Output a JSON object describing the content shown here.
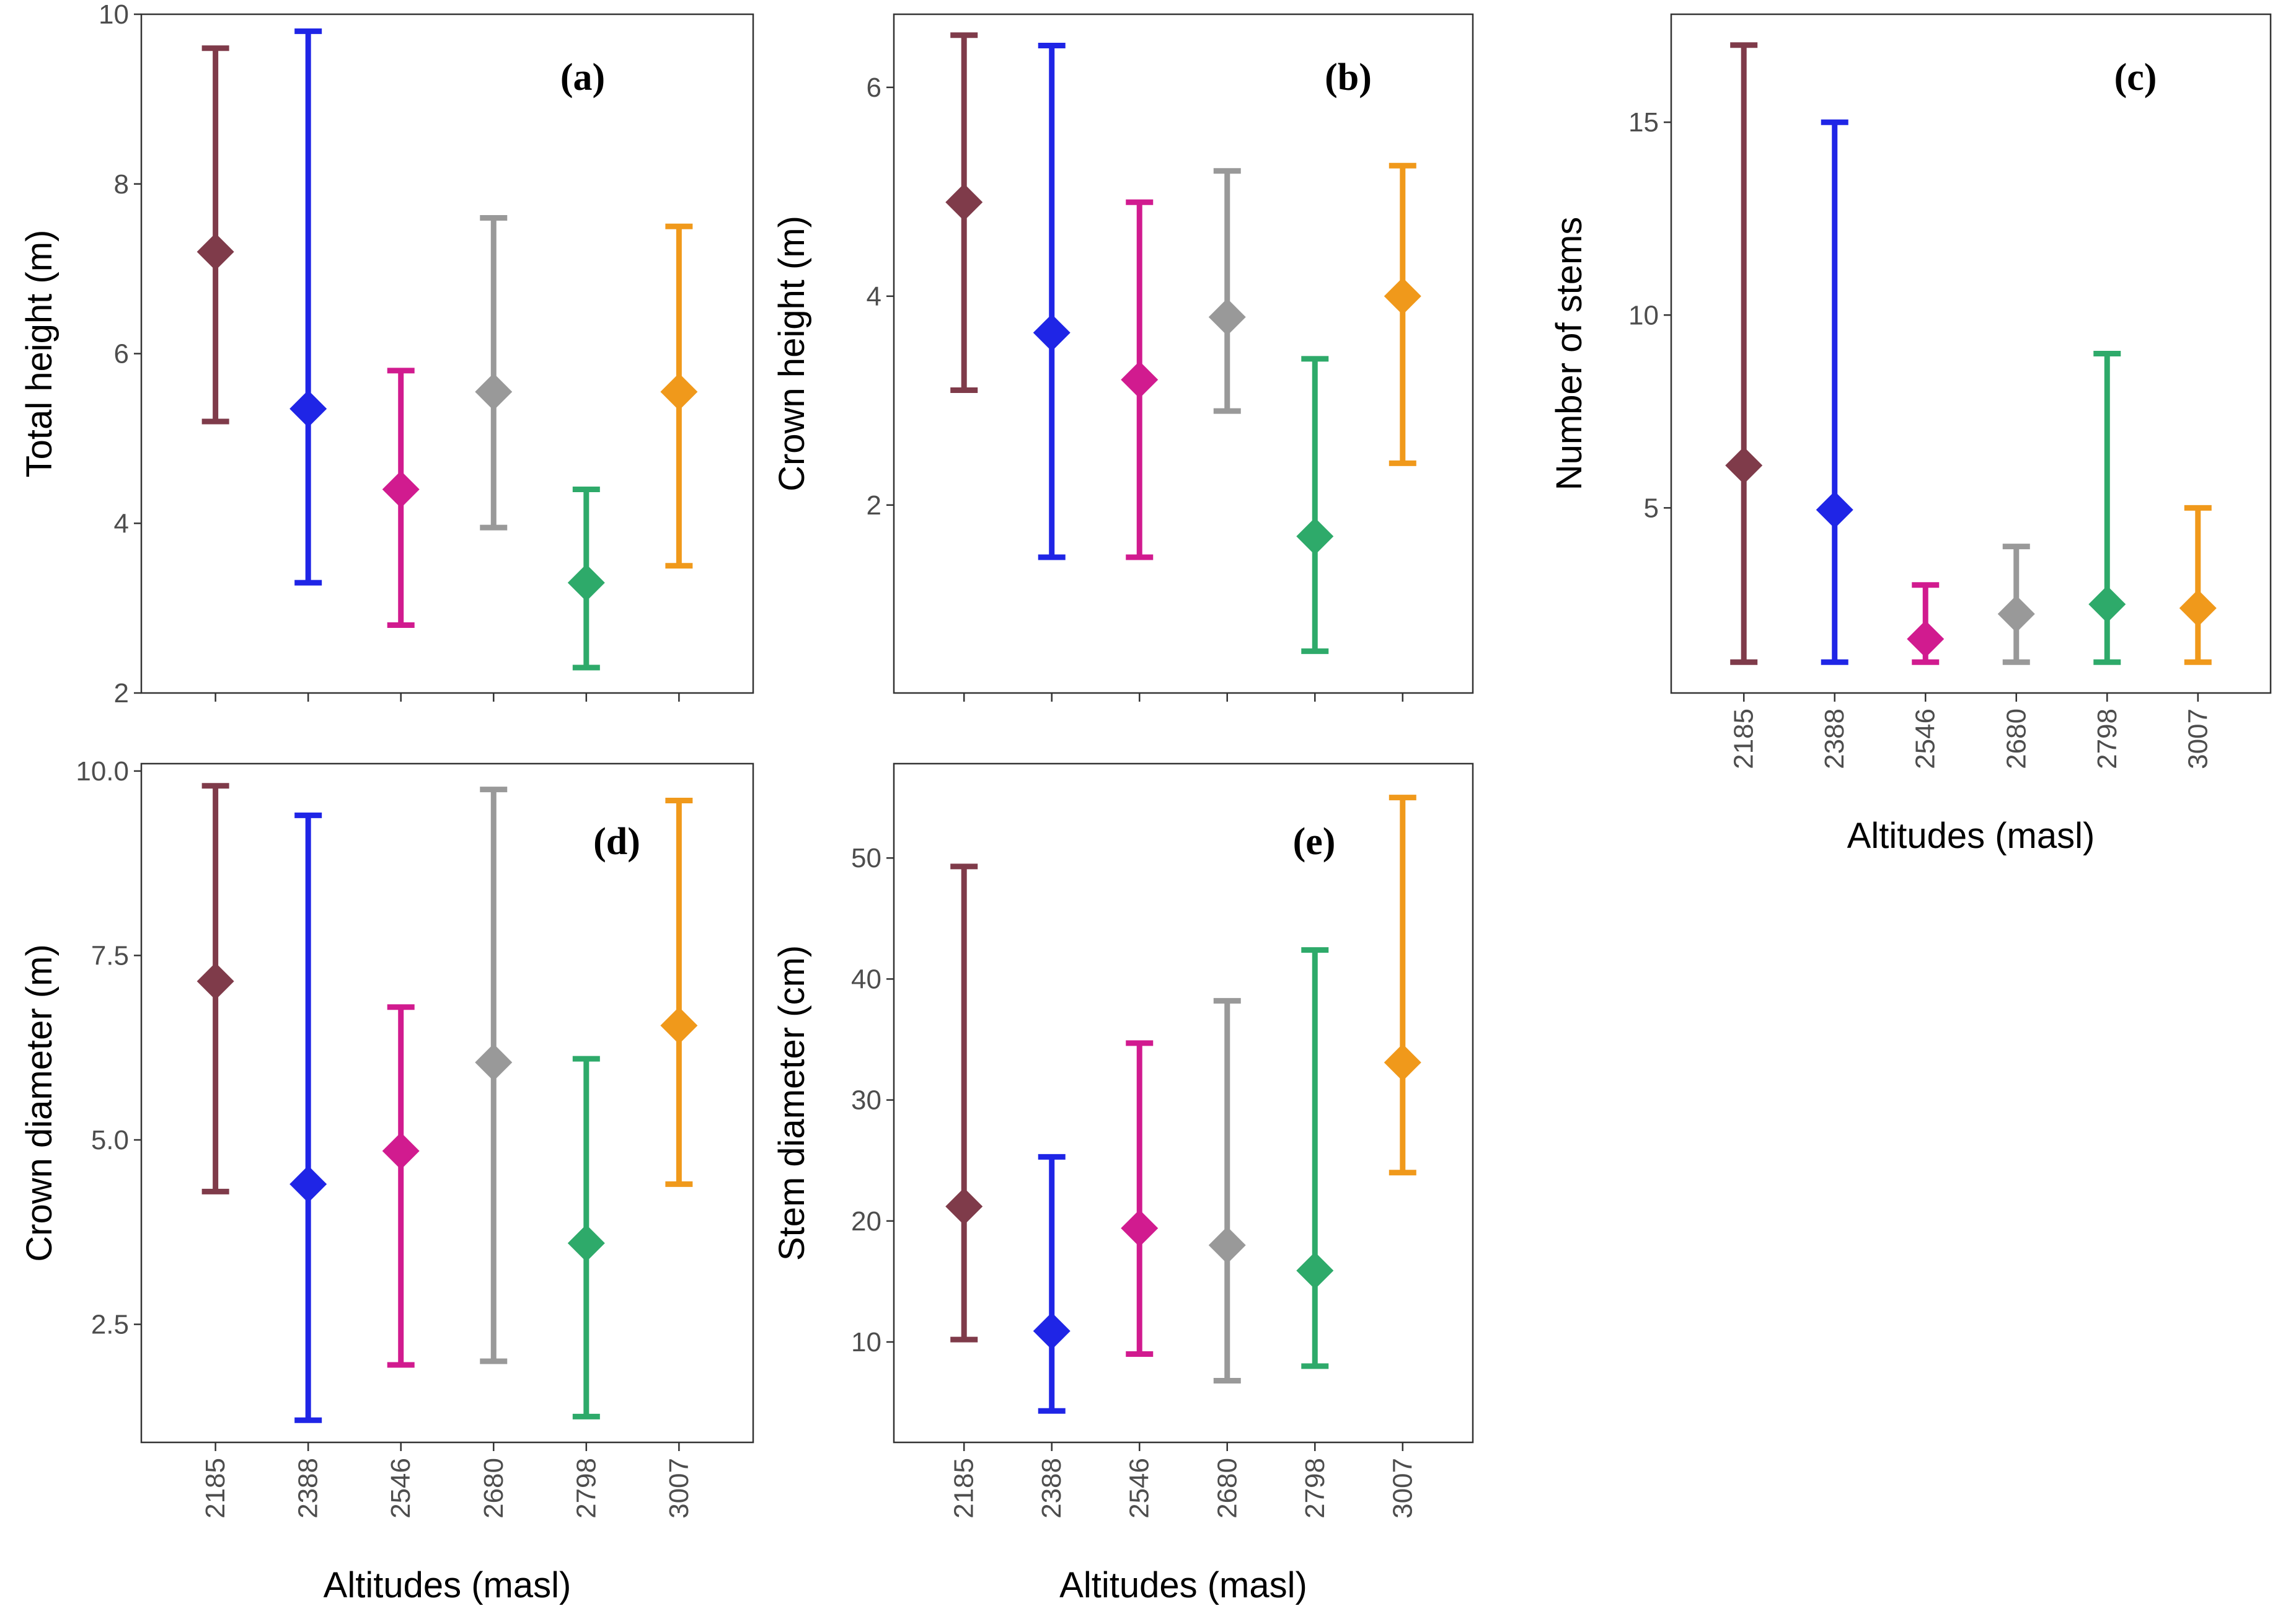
{
  "figure": {
    "x_title": "Altitudes (masl)"
  },
  "colors": {
    "2185": "#7f3b4a",
    "2388": "#1f25e6",
    "2546": "#d11b8f",
    "2680": "#999999",
    "2798": "#2eaa6a",
    "3007": "#f0991b"
  },
  "chart_data": [
    {
      "id": "a",
      "type": "scatter",
      "tag": "(a)",
      "title": "",
      "xlabel": "",
      "ylabel": "Total height (m)",
      "categories": [
        "2185",
        "2388",
        "2546",
        "2680",
        "2798",
        "3007"
      ],
      "ylim": [
        2,
        10
      ],
      "yticks": [
        2,
        4,
        6,
        8,
        10
      ],
      "ytick_labels": [
        "2",
        "4",
        "6",
        "8",
        "10"
      ],
      "show_xlabels": false,
      "series": [
        {
          "name": "Total height",
          "means": [
            7.2,
            5.35,
            4.4,
            5.55,
            3.3,
            5.55
          ],
          "lower": [
            5.2,
            3.3,
            2.8,
            3.95,
            2.3,
            3.5
          ],
          "upper": [
            9.6,
            9.8,
            5.8,
            7.6,
            4.4,
            7.5
          ]
        }
      ]
    },
    {
      "id": "b",
      "type": "scatter",
      "tag": "(b)",
      "title": "",
      "xlabel": "",
      "ylabel": "Crown height (m)",
      "categories": [
        "2185",
        "2388",
        "2546",
        "2680",
        "2798",
        "3007"
      ],
      "ylim": [
        0.2,
        6.7
      ],
      "yticks": [
        2,
        4,
        6
      ],
      "ytick_labels": [
        "2",
        "4",
        "6"
      ],
      "show_xlabels": false,
      "series": [
        {
          "name": "Crown height",
          "means": [
            4.9,
            3.65,
            3.2,
            3.8,
            1.7,
            4.0
          ],
          "lower": [
            3.1,
            1.5,
            1.5,
            2.9,
            0.6,
            2.4
          ],
          "upper": [
            6.5,
            6.4,
            4.9,
            5.2,
            3.4,
            5.25
          ]
        }
      ]
    },
    {
      "id": "c",
      "type": "scatter",
      "tag": "(c)",
      "title": "",
      "xlabel": "Altitudes (masl)",
      "ylabel": "Number of stems",
      "categories": [
        "2185",
        "2388",
        "2546",
        "2680",
        "2798",
        "3007"
      ],
      "ylim": [
        0.2,
        17.8
      ],
      "yticks": [
        5,
        10,
        15
      ],
      "ytick_labels": [
        "5",
        "10",
        "15"
      ],
      "show_xlabels": true,
      "series": [
        {
          "name": "Number of stems",
          "means": [
            6.1,
            4.95,
            1.6,
            2.25,
            2.5,
            2.4
          ],
          "lower": [
            1,
            1,
            1,
            1,
            1,
            1
          ],
          "upper": [
            17,
            15,
            3,
            4,
            9,
            5
          ]
        }
      ]
    },
    {
      "id": "d",
      "type": "scatter",
      "tag": "(d)",
      "title": "",
      "xlabel": "Altitudes (masl)",
      "ylabel": "Crown diameter (m)",
      "categories": [
        "2185",
        "2388",
        "2546",
        "2680",
        "2798",
        "3007"
      ],
      "ylim": [
        0.9,
        10.1
      ],
      "yticks": [
        2.5,
        5.0,
        7.5,
        10.0
      ],
      "ytick_labels": [
        "2.5",
        "5.0",
        "7.5",
        "10.0"
      ],
      "show_xlabels": true,
      "series": [
        {
          "name": "Crown diameter",
          "means": [
            7.15,
            4.4,
            4.85,
            6.05,
            3.6,
            6.55
          ],
          "lower": [
            4.3,
            1.2,
            1.95,
            2.0,
            1.25,
            4.4
          ],
          "upper": [
            9.8,
            9.4,
            6.8,
            9.75,
            6.1,
            9.6
          ]
        }
      ]
    },
    {
      "id": "e",
      "type": "scatter",
      "tag": "(e)",
      "title": "",
      "xlabel": "Altitudes (masl)",
      "ylabel": "Stem diameter (cm)",
      "categories": [
        "2185",
        "2388",
        "2546",
        "2680",
        "2798",
        "3007"
      ],
      "ylim": [
        1.7,
        57.8
      ],
      "yticks": [
        10,
        20,
        30,
        40,
        50
      ],
      "ytick_labels": [
        "10",
        "20",
        "30",
        "40",
        "50"
      ],
      "show_xlabels": true,
      "series": [
        {
          "name": "Stem diameter",
          "means": [
            21.2,
            10.9,
            19.4,
            18.0,
            15.9,
            33.1
          ],
          "lower": [
            10.2,
            4.3,
            9.0,
            6.8,
            8.0,
            24.0
          ],
          "upper": [
            49.3,
            25.3,
            34.7,
            38.2,
            42.4,
            55.0
          ]
        }
      ]
    }
  ]
}
